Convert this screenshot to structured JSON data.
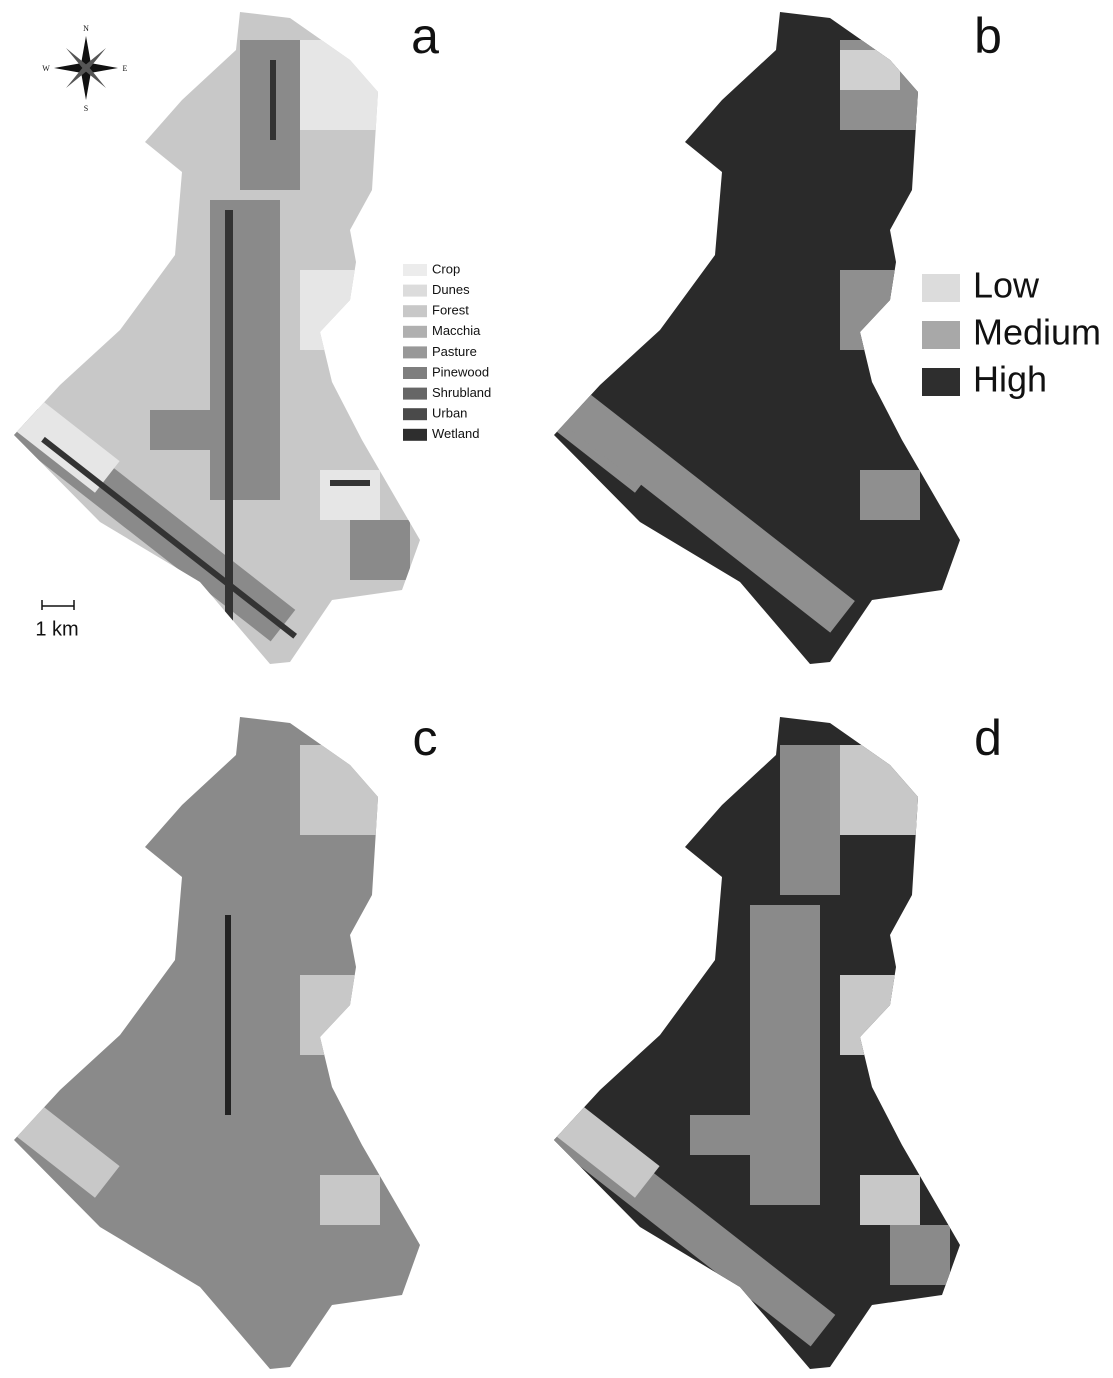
{
  "panels": [
    "a",
    "b",
    "c",
    "d"
  ],
  "compass": {
    "n": "N",
    "s": "S",
    "e": "E",
    "w": "W"
  },
  "scale_bar": "1 km",
  "land_cover_legend": [
    "Crop",
    "Dunes",
    "Forest",
    "Macchia",
    "Pasture",
    "Pinewood",
    "Shrubland",
    "Urban",
    "Wetland"
  ],
  "risk_legend": [
    "Low",
    "Medium",
    "High"
  ]
}
